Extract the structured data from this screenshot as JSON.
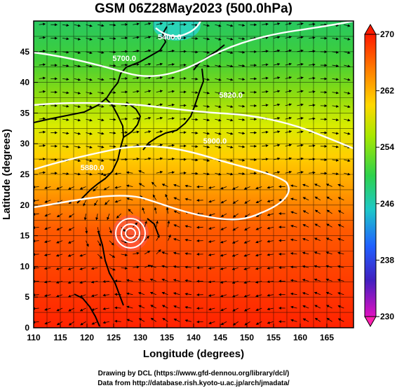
{
  "title": "GSM 06Z28May2023 (500.0hPa)",
  "map": {
    "xlabel": "Longitude (degrees)",
    "ylabel": "Latitude  (degrees)",
    "lon_range": [
      110,
      170
    ],
    "lat_range": [
      0,
      50
    ],
    "lon_ticks": [
      "110",
      "115",
      "120",
      "125",
      "130",
      "135",
      "140",
      "145",
      "150",
      "155",
      "160",
      "165"
    ],
    "lat_ticks": [
      "0",
      "5",
      "10",
      "15",
      "20",
      "25",
      "30",
      "35",
      "40",
      "45"
    ]
  },
  "colorbar": {
    "range": [
      230,
      270
    ],
    "tick_labels": [
      "270",
      "262",
      "254",
      "246",
      "238",
      "230"
    ],
    "colors": [
      "#ff1a00",
      "#ff7a00",
      "#ffd800",
      "#a8e800",
      "#2ed24c",
      "#1ec8c8",
      "#2060ff",
      "#4020c0",
      "#c010c0",
      "#ff20b0"
    ]
  },
  "contours": [
    {
      "label": "5400.0",
      "lon": 135.5,
      "lat": 47
    },
    {
      "label": "5700.0",
      "lon": 127,
      "lat": 43.5
    },
    {
      "label": "5820.0",
      "lon": 147,
      "lat": 37.5
    },
    {
      "label": "5900.0",
      "lon": 144,
      "lat": 30
    },
    {
      "label": "5880.0",
      "lon": 121,
      "lat": 25.7
    }
  ],
  "typhoon_center": {
    "lon": 127.5,
    "lat": 17.5
  },
  "credits": [
    "Drawing by DCL (https://www.gfd-dennou.org/library/dcl/)",
    "Data from http://database.rish.kyoto-u.ac.jp/arch/jmadata/"
  ]
}
